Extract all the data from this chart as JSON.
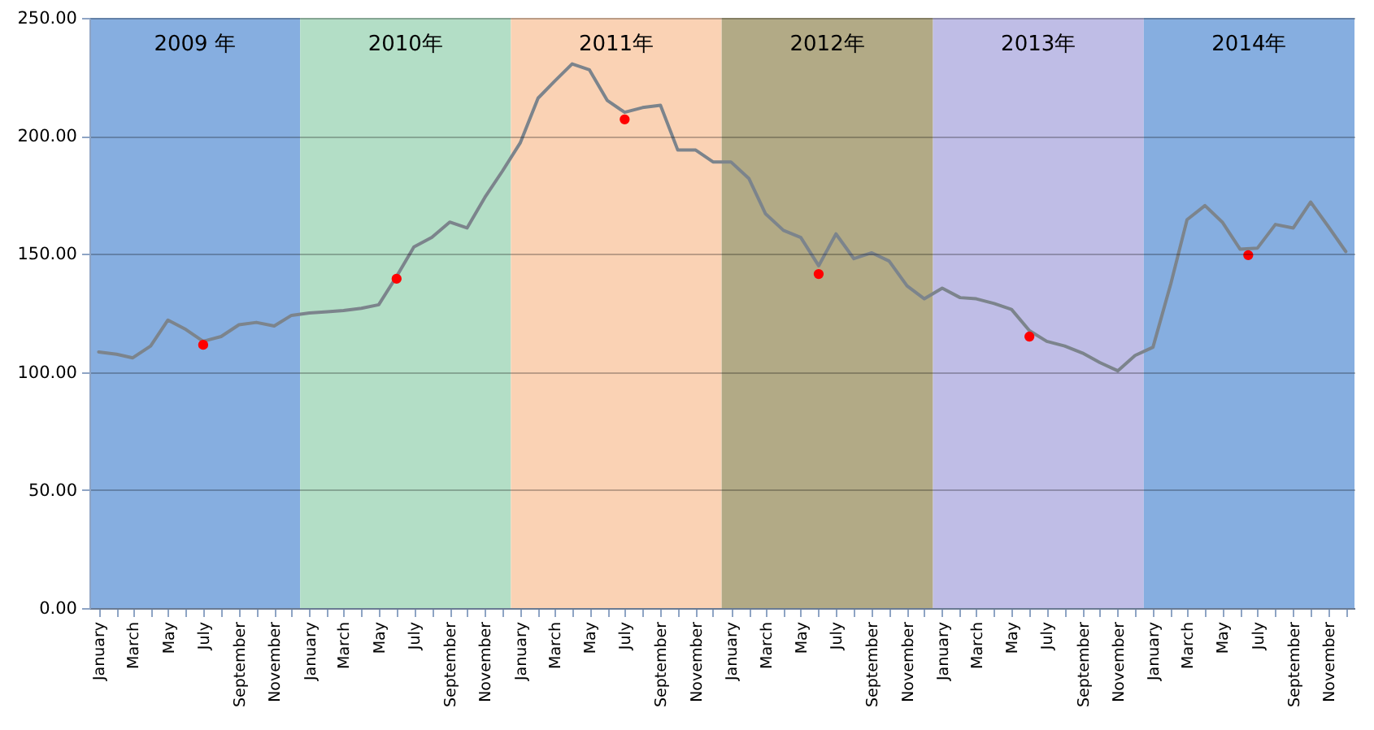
{
  "chart_data": {
    "type": "line",
    "x": [
      "2009-01",
      "2009-02",
      "2009-03",
      "2009-04",
      "2009-05",
      "2009-06",
      "2009-07",
      "2009-08",
      "2009-09",
      "2009-10",
      "2009-11",
      "2009-12",
      "2010-01",
      "2010-02",
      "2010-03",
      "2010-04",
      "2010-05",
      "2010-06",
      "2010-07",
      "2010-08",
      "2010-09",
      "2010-10",
      "2010-11",
      "2010-12",
      "2011-01",
      "2011-02",
      "2011-03",
      "2011-04",
      "2011-05",
      "2011-06",
      "2011-07",
      "2011-08",
      "2011-09",
      "2011-10",
      "2011-11",
      "2011-12",
      "2012-01",
      "2012-02",
      "2012-03",
      "2012-04",
      "2012-05",
      "2012-06",
      "2012-07",
      "2012-08",
      "2012-09",
      "2012-10",
      "2012-11",
      "2012-12",
      "2013-01",
      "2013-02",
      "2013-03",
      "2013-04",
      "2013-05",
      "2013-06",
      "2013-07",
      "2013-08",
      "2013-09",
      "2013-10",
      "2013-11",
      "2013-12",
      "2014-01",
      "2014-02",
      "2014-03",
      "2014-04",
      "2014-05",
      "2014-06",
      "2014-07",
      "2014-08",
      "2014-09",
      "2014-10",
      "2014-11",
      "2014-12"
    ],
    "xlim": [
      "2008-12-16",
      "2014-12-16"
    ],
    "xticks": [
      {
        "value": "2009-01",
        "label": "January"
      },
      {
        "value": "2009-02",
        "label": null
      },
      {
        "value": "2009-03",
        "label": "March"
      },
      {
        "value": "2009-04",
        "label": null
      },
      {
        "value": "2009-05",
        "label": "May"
      },
      {
        "value": "2009-06",
        "label": null
      },
      {
        "value": "2009-07",
        "label": "July"
      },
      {
        "value": "2009-08",
        "label": null
      },
      {
        "value": "2009-09",
        "label": "September"
      },
      {
        "value": "2009-10",
        "label": null
      },
      {
        "value": "2009-11",
        "label": "November"
      },
      {
        "value": "2009-12",
        "label": null
      },
      {
        "value": "2010-01",
        "label": "January"
      },
      {
        "value": "2010-02",
        "label": null
      },
      {
        "value": "2010-03",
        "label": "March"
      },
      {
        "value": "2010-04",
        "label": null
      },
      {
        "value": "2010-05",
        "label": "May"
      },
      {
        "value": "2010-06",
        "label": null
      },
      {
        "value": "2010-07",
        "label": "July"
      },
      {
        "value": "2010-08",
        "label": null
      },
      {
        "value": "2010-09",
        "label": "September"
      },
      {
        "value": "2010-10",
        "label": null
      },
      {
        "value": "2010-11",
        "label": "November"
      },
      {
        "value": "2010-12",
        "label": null
      },
      {
        "value": "2011-01",
        "label": "January"
      },
      {
        "value": "2011-02",
        "label": null
      },
      {
        "value": "2011-03",
        "label": "March"
      },
      {
        "value": "2011-04",
        "label": null
      },
      {
        "value": "2011-05",
        "label": "May"
      },
      {
        "value": "2011-06",
        "label": null
      },
      {
        "value": "2011-07",
        "label": "July"
      },
      {
        "value": "2011-08",
        "label": null
      },
      {
        "value": "2011-09",
        "label": "September"
      },
      {
        "value": "2011-10",
        "label": null
      },
      {
        "value": "2011-11",
        "label": "November"
      },
      {
        "value": "2011-12",
        "label": null
      },
      {
        "value": "2012-01",
        "label": "January"
      },
      {
        "value": "2012-02",
        "label": null
      },
      {
        "value": "2012-03",
        "label": "March"
      },
      {
        "value": "2012-04",
        "label": null
      },
      {
        "value": "2012-05",
        "label": "May"
      },
      {
        "value": "2012-06",
        "label": null
      },
      {
        "value": "2012-07",
        "label": "July"
      },
      {
        "value": "2012-08",
        "label": null
      },
      {
        "value": "2012-09",
        "label": "September"
      },
      {
        "value": "2012-10",
        "label": null
      },
      {
        "value": "2012-11",
        "label": "November"
      },
      {
        "value": "2012-12",
        "label": null
      },
      {
        "value": "2013-01",
        "label": "January"
      },
      {
        "value": "2013-02",
        "label": null
      },
      {
        "value": "2013-03",
        "label": "March"
      },
      {
        "value": "2013-04",
        "label": null
      },
      {
        "value": "2013-05",
        "label": "May"
      },
      {
        "value": "2013-06",
        "label": null
      },
      {
        "value": "2013-07",
        "label": "July"
      },
      {
        "value": "2013-08",
        "label": null
      },
      {
        "value": "2013-09",
        "label": "September"
      },
      {
        "value": "2013-10",
        "label": null
      },
      {
        "value": "2013-11",
        "label": "November"
      },
      {
        "value": "2013-12",
        "label": null
      },
      {
        "value": "2014-01",
        "label": "January"
      },
      {
        "value": "2014-02",
        "label": null
      },
      {
        "value": "2014-03",
        "label": "March"
      },
      {
        "value": "2014-04",
        "label": null
      },
      {
        "value": "2014-05",
        "label": "May"
      },
      {
        "value": "2014-06",
        "label": null
      },
      {
        "value": "2014-07",
        "label": "July"
      },
      {
        "value": "2014-08",
        "label": null
      },
      {
        "value": "2014-09",
        "label": "September"
      },
      {
        "value": "2014-10",
        "label": null
      },
      {
        "value": "2014-11",
        "label": "November"
      },
      {
        "value": "2014-12",
        "label": null
      }
    ],
    "ylim": [
      0,
      250
    ],
    "yticks": [
      {
        "value": 0,
        "label": "0.00"
      },
      {
        "value": 50,
        "label": "50.00"
      },
      {
        "value": 100,
        "label": "100.00"
      },
      {
        "value": 150,
        "label": "150.00"
      },
      {
        "value": 200,
        "label": "200.00"
      },
      {
        "value": 250,
        "label": "250.00"
      }
    ],
    "grid": "y",
    "bands": [
      {
        "axis": "x",
        "from": "2008-12-16",
        "to": "2009-12-16",
        "label": "2009 年",
        "color": "#86aee0"
      },
      {
        "axis": "x",
        "from": "2009-12-16",
        "to": "2010-12-16",
        "label": "2010年",
        "color": "#b3dec6"
      },
      {
        "axis": "x",
        "from": "2010-12-16",
        "to": "2011-12-16",
        "label": "2011年",
        "color": "#fad2b4"
      },
      {
        "axis": "x",
        "from": "2011-12-16",
        "to": "2012-12-16",
        "label": "2012年",
        "color": "#b2aa86"
      },
      {
        "axis": "x",
        "from": "2012-12-16",
        "to": "2013-12-16",
        "label": "2013年",
        "color": "#bfbde6"
      },
      {
        "axis": "x",
        "from": "2013-12-16",
        "to": "2014-12-16",
        "label": "2014年",
        "color": "#86aee0"
      }
    ],
    "series": [
      {
        "color": "#7c848c",
        "values": [
          108.5,
          107.5,
          106,
          111,
          122,
          118,
          113,
          115,
          120,
          121,
          119.5,
          124,
          125,
          125.5,
          126,
          127,
          128.5,
          140.5,
          153,
          157,
          163.5,
          161,
          174,
          185,
          197,
          216,
          223,
          230.5,
          228,
          215,
          210,
          212,
          213,
          194,
          194,
          189,
          189,
          182,
          167,
          160,
          157,
          145,
          158.5,
          148,
          150.5,
          147,
          136.5,
          131,
          135.5,
          131.5,
          131,
          129,
          126.5,
          117.5,
          113,
          111,
          108,
          104,
          100.5,
          107,
          110.5,
          137.5,
          164.5,
          170.5,
          163.5,
          152,
          152.5,
          162.5,
          161,
          172,
          161.5,
          151
        ]
      },
      {
        "type": "scatter",
        "marker": "circle",
        "color": "#ff0000",
        "x": [
          "2009-07",
          "2010-06",
          "2011-07",
          "2012-06",
          "2013-06",
          "2014-06-15"
        ],
        "values": [
          111.5,
          139.5,
          207,
          141.5,
          115,
          149.5
        ]
      }
    ]
  }
}
